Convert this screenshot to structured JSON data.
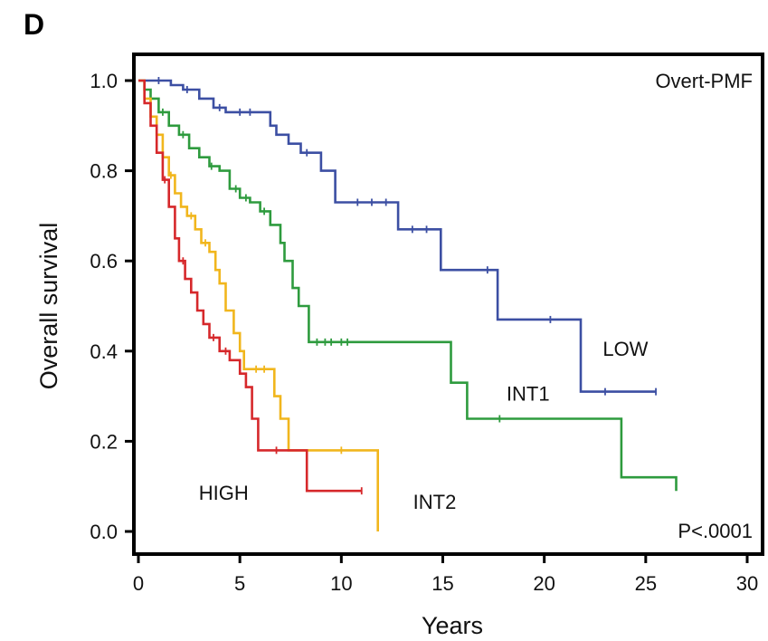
{
  "panel_label": "D",
  "chart_data": {
    "type": "line",
    "step": true,
    "xlabel": "Years",
    "ylabel": "Overall survival",
    "xlim": [
      0,
      30
    ],
    "ylim": [
      0,
      1.0
    ],
    "x_ticks": [
      0,
      5,
      10,
      15,
      20,
      25,
      30
    ],
    "x_tick_labels": [
      "0",
      "5",
      "10",
      "15",
      "20",
      "25",
      "30"
    ],
    "y_ticks": [
      0,
      0.2,
      0.4,
      0.6,
      0.8,
      1.0
    ],
    "y_tick_labels": [
      "0.0",
      "0.2",
      "0.4",
      "0.6",
      "0.8",
      "1.0"
    ],
    "grid": false,
    "annotations": {
      "top_right": "Overt-PMF",
      "bottom_right": "P<.0001"
    },
    "series": [
      {
        "name": "LOW",
        "color": "#3c4fa3",
        "points": [
          [
            0,
            1.0
          ],
          [
            1.3,
            1.0
          ],
          [
            1.6,
            0.99
          ],
          [
            2.2,
            0.98
          ],
          [
            3.0,
            0.96
          ],
          [
            3.7,
            0.94
          ],
          [
            4.3,
            0.93
          ],
          [
            6.0,
            0.93
          ],
          [
            6.5,
            0.9
          ],
          [
            6.8,
            0.88
          ],
          [
            7.4,
            0.86
          ],
          [
            8.0,
            0.84
          ],
          [
            8.4,
            0.84
          ],
          [
            9.0,
            0.8
          ],
          [
            9.7,
            0.8
          ],
          [
            9.7,
            0.73
          ],
          [
            12.8,
            0.73
          ],
          [
            12.8,
            0.67
          ],
          [
            14.9,
            0.67
          ],
          [
            14.9,
            0.58
          ],
          [
            17.7,
            0.58
          ],
          [
            17.7,
            0.47
          ],
          [
            21.8,
            0.47
          ],
          [
            21.8,
            0.31
          ],
          [
            25.5,
            0.31
          ]
        ],
        "censor_x": [
          1.0,
          2.4,
          4.0,
          5.0,
          5.5,
          8.3,
          10.8,
          11.5,
          12.2,
          13.5,
          14.2,
          17.2,
          20.3,
          23.0,
          25.5
        ]
      },
      {
        "name": "INT1",
        "color": "#2e9b3e",
        "points": [
          [
            0,
            1.0
          ],
          [
            0.3,
            0.98
          ],
          [
            0.6,
            0.96
          ],
          [
            1.0,
            0.93
          ],
          [
            1.5,
            0.9
          ],
          [
            2.0,
            0.88
          ],
          [
            2.5,
            0.85
          ],
          [
            3.0,
            0.83
          ],
          [
            3.5,
            0.81
          ],
          [
            4.0,
            0.8
          ],
          [
            4.5,
            0.76
          ],
          [
            5.0,
            0.74
          ],
          [
            5.5,
            0.73
          ],
          [
            6.0,
            0.71
          ],
          [
            6.5,
            0.68
          ],
          [
            7.0,
            0.64
          ],
          [
            7.2,
            0.6
          ],
          [
            7.6,
            0.59
          ],
          [
            7.6,
            0.54
          ],
          [
            7.9,
            0.5
          ],
          [
            8.2,
            0.5
          ],
          [
            8.4,
            0.42
          ],
          [
            15.4,
            0.42
          ],
          [
            15.4,
            0.33
          ],
          [
            16.2,
            0.33
          ],
          [
            16.2,
            0.25
          ],
          [
            23.8,
            0.25
          ],
          [
            23.8,
            0.12
          ],
          [
            26.5,
            0.12
          ],
          [
            26.5,
            0.09
          ]
        ],
        "censor_x": [
          1.2,
          2.2,
          3.6,
          4.8,
          5.3,
          6.2,
          8.8,
          9.2,
          9.5,
          10.0,
          10.3,
          17.8
        ]
      },
      {
        "name": "INT2",
        "color": "#f1b61d",
        "points": [
          [
            0,
            1.0
          ],
          [
            0.3,
            0.96
          ],
          [
            0.6,
            0.92
          ],
          [
            0.9,
            0.88
          ],
          [
            1.2,
            0.83
          ],
          [
            1.5,
            0.79
          ],
          [
            1.8,
            0.75
          ],
          [
            2.1,
            0.72
          ],
          [
            2.4,
            0.7
          ],
          [
            2.8,
            0.67
          ],
          [
            3.1,
            0.64
          ],
          [
            3.5,
            0.62
          ],
          [
            3.8,
            0.58
          ],
          [
            4.0,
            0.55
          ],
          [
            4.3,
            0.49
          ],
          [
            4.7,
            0.44
          ],
          [
            5.0,
            0.4
          ],
          [
            5.2,
            0.36
          ],
          [
            6.5,
            0.36
          ],
          [
            6.7,
            0.3
          ],
          [
            7.0,
            0.25
          ],
          [
            7.4,
            0.18
          ],
          [
            11.8,
            0.18
          ],
          [
            11.8,
            0.0
          ]
        ],
        "censor_x": [
          1.6,
          2.6,
          3.3,
          5.8,
          6.2,
          10.0
        ]
      },
      {
        "name": "HIGH",
        "color": "#d6282b",
        "points": [
          [
            0,
            1.0
          ],
          [
            0.3,
            0.95
          ],
          [
            0.6,
            0.9
          ],
          [
            0.9,
            0.84
          ],
          [
            1.2,
            0.78
          ],
          [
            1.5,
            0.72
          ],
          [
            1.8,
            0.65
          ],
          [
            2.0,
            0.6
          ],
          [
            2.3,
            0.56
          ],
          [
            2.6,
            0.53
          ],
          [
            2.9,
            0.49
          ],
          [
            3.2,
            0.46
          ],
          [
            3.5,
            0.43
          ],
          [
            4.0,
            0.4
          ],
          [
            4.5,
            0.38
          ],
          [
            5.0,
            0.35
          ],
          [
            5.3,
            0.32
          ],
          [
            5.6,
            0.25
          ],
          [
            5.9,
            0.18
          ],
          [
            8.3,
            0.18
          ],
          [
            8.3,
            0.09
          ],
          [
            11.0,
            0.09
          ]
        ],
        "censor_x": [
          1.3,
          2.2,
          3.7,
          4.3,
          6.8,
          11.0
        ]
      }
    ],
    "series_labels": [
      {
        "name": "LOW",
        "x": 24.0,
        "y": 0.39
      },
      {
        "name": "INT1",
        "x": 19.2,
        "y": 0.29
      },
      {
        "name": "INT2",
        "x": 14.6,
        "y": 0.05
      },
      {
        "name": "HIGH",
        "x": 4.2,
        "y": 0.07
      }
    ]
  }
}
